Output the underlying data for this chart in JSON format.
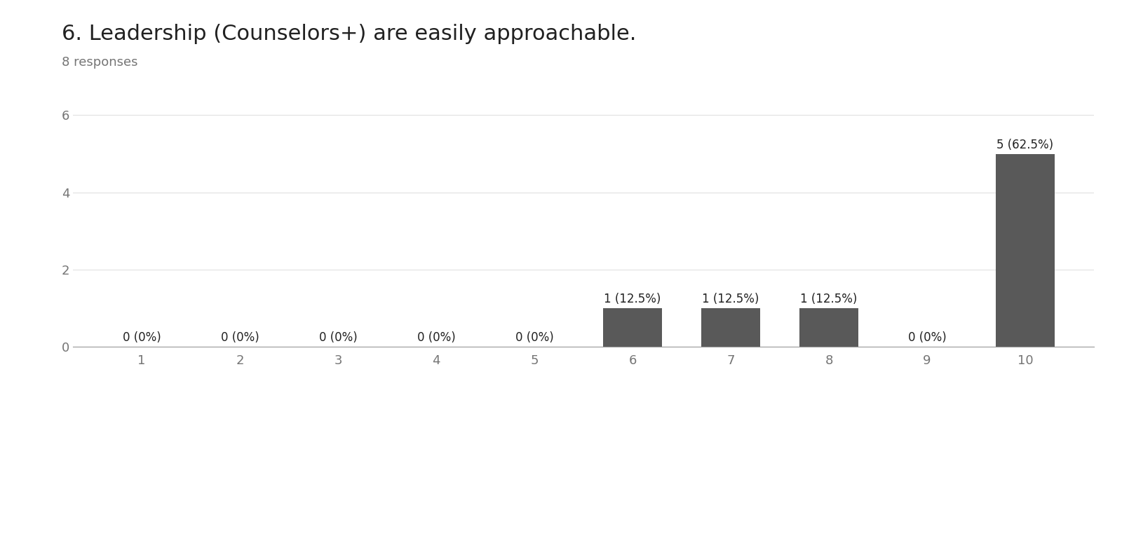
{
  "title": "6. Leadership (Counselors+) are easily approachable.",
  "subtitle": "8 responses",
  "categories": [
    1,
    2,
    3,
    4,
    5,
    6,
    7,
    8,
    9,
    10
  ],
  "values": [
    0,
    0,
    0,
    0,
    0,
    1,
    1,
    1,
    0,
    5
  ],
  "bar_color": "#595959",
  "bar_labels": [
    "0 (0%)",
    "0 (0%)",
    "0 (0%)",
    "0 (0%)",
    "0 (0%)",
    "1 (12.5%)",
    "1 (12.5%)",
    "1 (12.5%)",
    "0 (0%)",
    "5 (62.5%)"
  ],
  "ylim": [
    0,
    6.5
  ],
  "yticks": [
    0,
    2,
    4,
    6
  ],
  "background_color": "#ffffff",
  "title_fontsize": 22,
  "subtitle_fontsize": 13,
  "label_fontsize": 12,
  "tick_fontsize": 13,
  "grid_color": "#e0e0e0",
  "axis_color": "#999999",
  "text_color": "#212121",
  "subtitle_color": "#757575",
  "tick_color": "#757575"
}
